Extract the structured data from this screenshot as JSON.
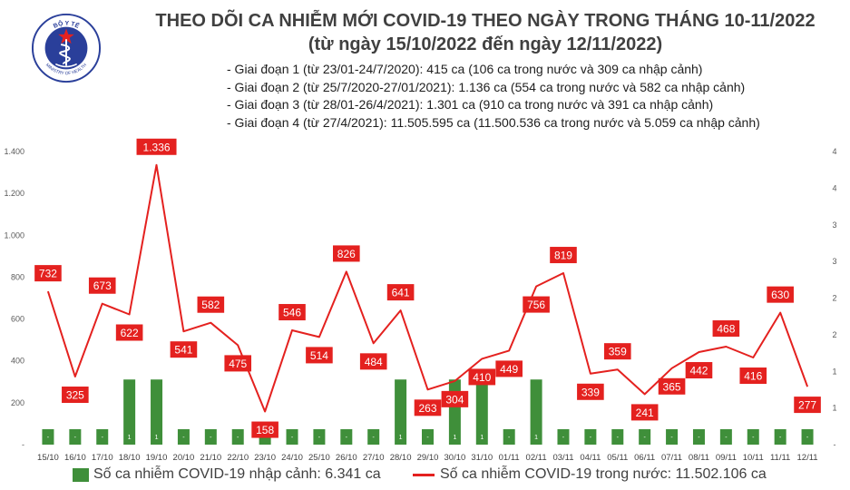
{
  "header": {
    "logo_text_top": "BỘ Y TẾ",
    "logo_text_bottom": "MINISTRY OF HEALTH",
    "title": "THEO DÕI CA NHIỄM MỚI COVID-19 THEO NGÀY TRONG THÁNG 10-11/2022",
    "subtitle": "(từ ngày 15/10/2022 đến ngày 12/11/2022)"
  },
  "phases": [
    "- Giai đoạn 1 (từ 23/01-24/7/2020): 415 ca (106 ca trong nước và 309 ca nhập cảnh)",
    "- Giai đoạn 2 (từ 25/7/2020-27/01/2021): 1.136 ca (554 ca trong nước và 582 ca nhập cảnh)",
    "- Giai đoạn 3 (từ 28/01-26/4/2021): 1.301 ca (910 ca trong nước và 391 ca nhập cảnh)",
    "- Giai đoạn 4 (từ 27/4/2021): 11.505.595 ca (11.500.536 ca trong nước và 5.059 ca nhập cảnh)"
  ],
  "colors": {
    "bar": "#3f8f3a",
    "line": "#e4211f",
    "label_box": "#e4211f"
  },
  "chart_data": {
    "type": "bar+line",
    "categories": [
      "15/10",
      "16/10",
      "17/10",
      "18/10",
      "19/10",
      "20/10",
      "21/10",
      "22/10",
      "23/10",
      "24/10",
      "25/10",
      "26/10",
      "27/10",
      "28/10",
      "29/10",
      "30/10",
      "31/10",
      "01/11",
      "02/11",
      "03/11",
      "04/11",
      "05/11",
      "06/11",
      "07/11",
      "08/11",
      "09/11",
      "10/11",
      "11/11",
      "12/11"
    ],
    "left_axis": {
      "ylim": [
        0,
        1400
      ],
      "ticks": [
        "-",
        "200",
        "400",
        "600",
        "800",
        "1.000",
        "1.200",
        "1.400"
      ]
    },
    "right_axis": {
      "ylim": [
        0,
        4.5
      ],
      "ticks": [
        "-",
        "1",
        "1",
        "2",
        "2",
        "3",
        "3",
        "4",
        "4"
      ]
    },
    "series": [
      {
        "name": "Số ca nhiễm COVID-19 nhập cảnh: 6.341 ca",
        "type": "bar",
        "axis": "right",
        "values": [
          0,
          0,
          0,
          1,
          1,
          0,
          0,
          0,
          0,
          0,
          0,
          0,
          0,
          1,
          0,
          1,
          1,
          0,
          1,
          0,
          0,
          0,
          0,
          0,
          0,
          0,
          0,
          0,
          0
        ],
        "labels": [
          "-",
          "-",
          "-",
          "1",
          "1",
          "-",
          "-",
          "-",
          "-",
          "-",
          "-",
          "-",
          "-",
          "1",
          "-",
          "1",
          "1",
          "-",
          "1",
          "-",
          "-",
          "-",
          "-",
          "-",
          "-",
          "-",
          "-",
          "-",
          "-"
        ]
      },
      {
        "name": "Số ca nhiễm COVID-19 trong nước: 11.502.106 ca",
        "type": "line",
        "axis": "left",
        "values": [
          732,
          325,
          673,
          622,
          1336,
          541,
          582,
          475,
          158,
          546,
          514,
          826,
          484,
          641,
          263,
          304,
          410,
          449,
          756,
          819,
          339,
          359,
          241,
          365,
          442,
          468,
          416,
          630,
          277
        ],
        "labels": [
          "732",
          "325",
          "673",
          "622",
          "1.336",
          "541",
          "582",
          "475",
          "158",
          "546",
          "514",
          "826",
          "484",
          "641",
          "263",
          "304",
          "410",
          "449",
          "756",
          "819",
          "339",
          "359",
          "241",
          "365",
          "442",
          "468",
          "416",
          "630",
          "277"
        ]
      }
    ]
  }
}
